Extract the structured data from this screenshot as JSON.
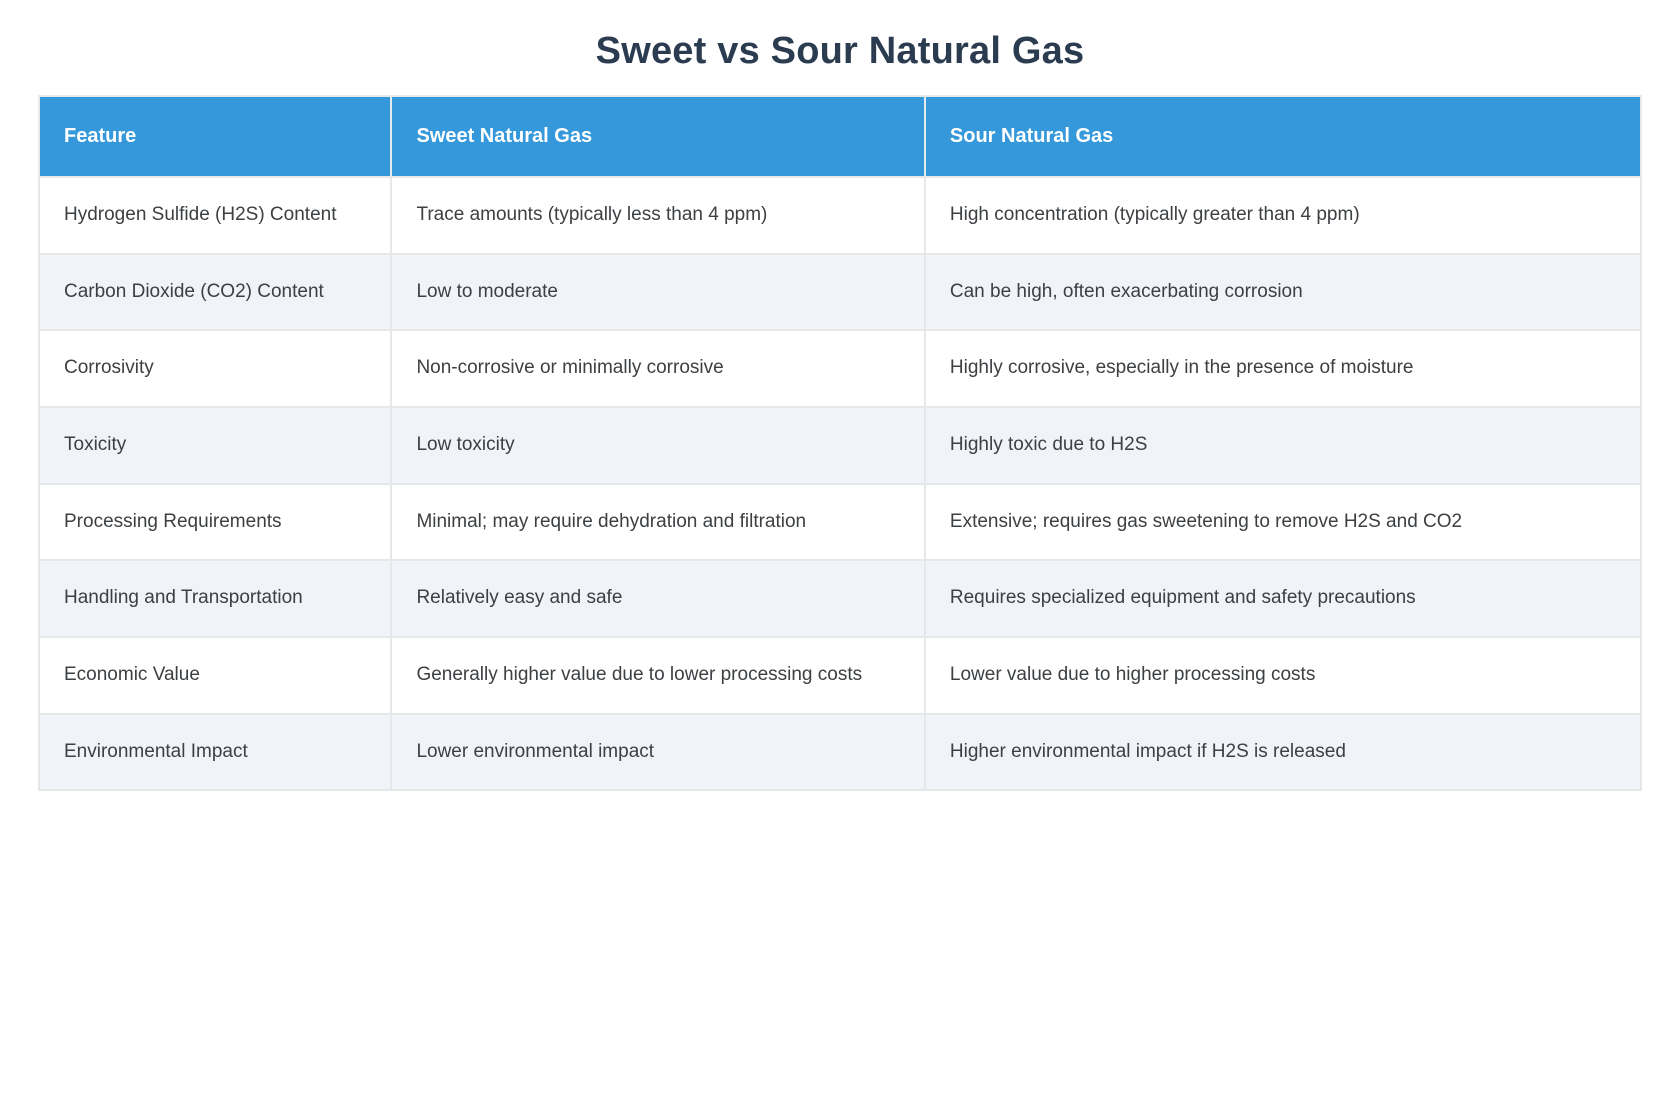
{
  "chart_data": {
    "type": "table",
    "title": "Sweet vs Sour Natural Gas",
    "columns": [
      "Feature",
      "Sweet Natural Gas",
      "Sour Natural Gas"
    ],
    "rows": [
      [
        "Hydrogen Sulfide (H2S) Content",
        "Trace amounts (typically less than 4 ppm)",
        "High concentration (typically greater than 4 ppm)"
      ],
      [
        "Carbon Dioxide (CO2) Content",
        "Low to moderate",
        "Can be high, often exacerbating corrosion"
      ],
      [
        "Corrosivity",
        "Non-corrosive or minimally corrosive",
        "Highly corrosive, especially in the presence of moisture"
      ],
      [
        "Toxicity",
        "Low toxicity",
        "Highly toxic due to H2S"
      ],
      [
        "Processing Requirements",
        "Minimal; may require dehydration and filtration",
        "Extensive; requires gas sweetening to remove H2S and CO2"
      ],
      [
        "Handling and Transportation",
        "Relatively easy and safe",
        "Requires specialized equipment and safety precautions"
      ],
      [
        "Economic Value",
        "Generally higher value due to lower processing costs",
        "Lower value due to higher processing costs"
      ],
      [
        "Environmental Impact",
        "Lower environmental impact",
        "Higher environmental impact if H2S is released"
      ]
    ],
    "layout": {
      "legend": "none",
      "grid": "cell-borders",
      "header_position": "top",
      "row_striping": "even-rows-shaded"
    }
  },
  "colors": {
    "header_bg": "#3598db",
    "header_text": "#ffffff",
    "row_bg": "#ffffff",
    "row_alt_bg": "#f0f4f9",
    "cell_border": "#e6e7e9",
    "title_text": "#2c3c50",
    "body_text": "#3d4043"
  }
}
